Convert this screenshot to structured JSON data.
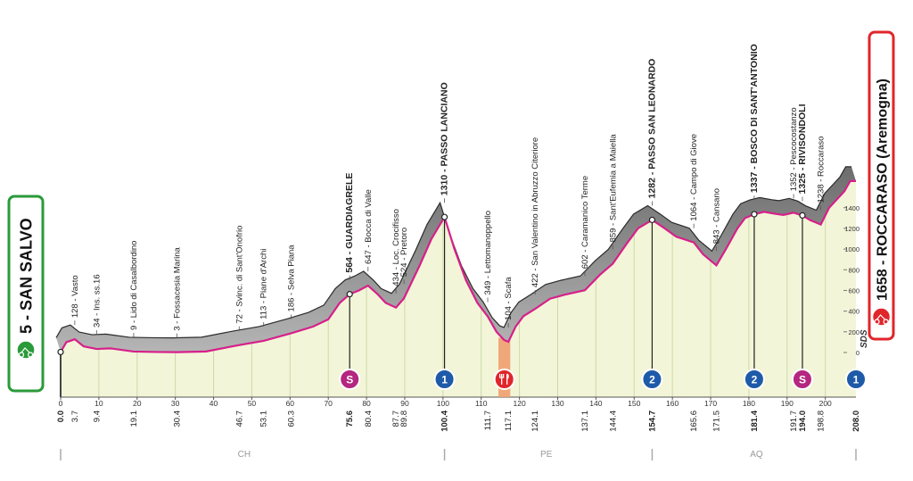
{
  "chart_data": {
    "type": "profile",
    "start": {
      "name": "5 - SAN SALVO",
      "km": 0,
      "km_label": "0.0",
      "color": "#2a9a3a"
    },
    "finish": {
      "name": "1658 - ROCCARASO (Aremogna)",
      "km": 208,
      "km_label": "208.0",
      "color": "#e0262b"
    },
    "waypoints": [
      {
        "name": "128 - Vasto",
        "km": 3.7,
        "altitude": 128
      },
      {
        "name": "34 - Ins. ss.16",
        "km": 9.4,
        "altitude": 34
      },
      {
        "name": "9 - Lido di Casalbordino",
        "km": 19.1,
        "altitude": 9
      },
      {
        "name": "3 - Fossacesia Marina",
        "km": 30.4,
        "altitude": 3
      },
      {
        "name": "72 - Svinc. di Sant'Onofrio",
        "km": 46.7,
        "altitude": 72
      },
      {
        "name": "113 - Piane d'Archi",
        "km": 53.1,
        "altitude": 113
      },
      {
        "name": "186 - Selva Piana",
        "km": 60.3,
        "altitude": 186
      },
      {
        "name": "564 - GUARDIAGRELE",
        "km": 75.6,
        "altitude": 564,
        "bold": true
      },
      {
        "name": "647 - Bocca di Valle",
        "km": 80.4,
        "altitude": 647
      },
      {
        "name": "434 - Loc. Crocifisso",
        "km": 87.7,
        "altitude": 434
      },
      {
        "name": "524 - Pretoro",
        "km": 89.8,
        "altitude": 524
      },
      {
        "name": "1310 - PASSO LANCIANO",
        "km": 100.4,
        "altitude": 1310,
        "bold": true
      },
      {
        "name": "349 - Lettomanoppello",
        "km": 111.7,
        "altitude": 349
      },
      {
        "name": "104 - Scafa",
        "km": 117.1,
        "altitude": 104
      },
      {
        "name": "422 - San Valentino in Abruzzo Citeriore",
        "km": 124.1,
        "altitude": 422
      },
      {
        "name": "602 - Caramanico Terme",
        "km": 137.1,
        "altitude": 602
      },
      {
        "name": "859 - Sant'Eufemia a Maiella",
        "km": 144.4,
        "altitude": 859
      },
      {
        "name": "1282 - PASSO SAN LEONARDO",
        "km": 154.7,
        "altitude": 1282,
        "bold": true
      },
      {
        "name": "1064 - Campo di Giove",
        "km": 165.6,
        "altitude": 1064
      },
      {
        "name": "843 - Cansano",
        "km": 171.5,
        "altitude": 843
      },
      {
        "name": "1337 - BOSCO DI SANT'ANTONIO",
        "km": 181.4,
        "altitude": 1337,
        "bold": true
      },
      {
        "name": "1352 - Pescocostanzo",
        "km": 191.7,
        "altitude": 1352
      },
      {
        "name": "1325 - RIVISONDOLI",
        "km": 194,
        "km_label": "194.0",
        "altitude": 1325,
        "bold": true
      },
      {
        "name": "1238 - Roccaraso",
        "km": 198.8,
        "altitude": 1238
      }
    ],
    "profile": {
      "color": "#d6208a",
      "km": [
        0,
        1.5,
        3.7,
        6,
        9.4,
        13,
        19.1,
        25,
        30.4,
        38,
        46.7,
        53.1,
        60.3,
        66,
        70,
        73,
        75.6,
        78,
        80.4,
        83,
        85,
        87.7,
        89.8,
        94,
        97,
        100.4,
        103,
        106,
        109,
        111.7,
        114,
        116,
        117.1,
        119,
        121,
        124.1,
        128,
        132,
        137.1,
        141,
        144.4,
        148,
        151,
        154.7,
        158,
        161,
        165.6,
        168,
        171.5,
        174,
        177,
        179,
        181.4,
        184,
        187,
        189,
        191.7,
        194,
        196,
        198.8,
        201,
        203,
        205,
        206.5,
        208
      ],
      "altitude": [
        5,
        100,
        128,
        60,
        34,
        40,
        9,
        5,
        3,
        10,
        72,
        113,
        186,
        250,
        320,
        480,
        564,
        600,
        647,
        560,
        480,
        434,
        524,
        850,
        1100,
        1310,
        1000,
        700,
        480,
        349,
        200,
        120,
        104,
        250,
        350,
        422,
        520,
        560,
        602,
        750,
        859,
        1050,
        1200,
        1282,
        1200,
        1120,
        1064,
        950,
        843,
        1000,
        1200,
        1300,
        1337,
        1360,
        1340,
        1330,
        1352,
        1325,
        1280,
        1238,
        1400,
        1480,
        1560,
        1658,
        1658
      ]
    },
    "xlim": [
      0,
      208
    ],
    "xticks": [
      0,
      10,
      20,
      30,
      40,
      50,
      60,
      70,
      80,
      90,
      100,
      110,
      120,
      130,
      140,
      150,
      160,
      170,
      180,
      190,
      200
    ],
    "ylim": [
      0,
      1700
    ],
    "yticks": [
      0,
      200,
      400,
      600,
      800,
      1000,
      1200,
      1400
    ],
    "icons": [
      {
        "km": 75.6,
        "symbol": "S",
        "color": "#b4267f"
      },
      {
        "km": 100.4,
        "symbol": "1",
        "color": "#1e5aa8"
      },
      {
        "km": 154.7,
        "symbol": "2",
        "color": "#1e5aa8"
      },
      {
        "km": 181.4,
        "symbol": "2",
        "color": "#1e5aa8"
      },
      {
        "km": 194,
        "symbol": "S",
        "color": "#b4267f"
      },
      {
        "km": 208,
        "symbol": "1",
        "color": "#1e5aa8"
      }
    ],
    "feed_zone": {
      "from": 114.5,
      "to": 117.6,
      "color": "#f0a070",
      "icon_color": "#e0262b"
    },
    "regions": [
      {
        "name": "CH",
        "km": 48
      },
      {
        "name": "PE",
        "km": 127
      },
      {
        "name": "AQ",
        "km": 182
      }
    ],
    "region_bounds": [
      0,
      100.4,
      154.7,
      208
    ],
    "logo": "SDS"
  }
}
